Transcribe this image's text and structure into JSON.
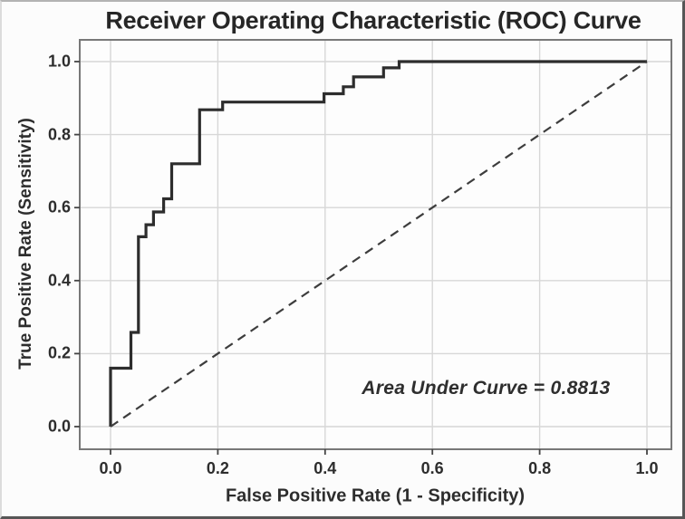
{
  "figure": {
    "kind": "statistical-plot-screenshot",
    "background": "#fcfcfc"
  },
  "chart_data": {
    "type": "line",
    "subtype": "roc-step-curve",
    "title": "Receiver Operating Characteristic (ROC) Curve",
    "xlabel": "False Positive Rate (1 - Specificity)",
    "ylabel": "True Positive Rate (Sensitivity)",
    "xlim": [
      0.0,
      1.0
    ],
    "ylim": [
      0.0,
      1.0
    ],
    "grid": true,
    "legend_position": "none",
    "x_ticks": [
      0.0,
      0.2,
      0.4,
      0.6,
      0.8,
      1.0
    ],
    "y_ticks": [
      0.0,
      0.2,
      0.4,
      0.6,
      0.8,
      1.0
    ],
    "x_tick_labels": [
      "0.0",
      "0.2",
      "0.4",
      "0.6",
      "0.8",
      "1.0"
    ],
    "y_tick_labels": [
      "0.0",
      "0.2",
      "0.4",
      "0.6",
      "0.8",
      "1.0"
    ],
    "auc": 0.8813,
    "annotation": {
      "text": "Area Under Curve = 0.8813",
      "x": 0.7,
      "y": 0.105
    },
    "series": [
      {
        "name": "ROC curve",
        "style": "solid",
        "color": "#2d2d2d",
        "width": 3.2,
        "points": [
          [
            0.0,
            0.0
          ],
          [
            0.0,
            0.16
          ],
          [
            0.038,
            0.16
          ],
          [
            0.038,
            0.258
          ],
          [
            0.052,
            0.258
          ],
          [
            0.052,
            0.52
          ],
          [
            0.066,
            0.52
          ],
          [
            0.066,
            0.553
          ],
          [
            0.08,
            0.553
          ],
          [
            0.08,
            0.588
          ],
          [
            0.099,
            0.588
          ],
          [
            0.099,
            0.624
          ],
          [
            0.114,
            0.624
          ],
          [
            0.114,
            0.72
          ],
          [
            0.166,
            0.72
          ],
          [
            0.166,
            0.868
          ],
          [
            0.209,
            0.868
          ],
          [
            0.209,
            0.889
          ],
          [
            0.398,
            0.889
          ],
          [
            0.398,
            0.912
          ],
          [
            0.434,
            0.912
          ],
          [
            0.434,
            0.931
          ],
          [
            0.453,
            0.931
          ],
          [
            0.453,
            0.958
          ],
          [
            0.509,
            0.958
          ],
          [
            0.509,
            0.983
          ],
          [
            0.538,
            0.983
          ],
          [
            0.538,
            1.0
          ],
          [
            1.0,
            1.0
          ]
        ]
      },
      {
        "name": "Chance diagonal",
        "style": "dashed",
        "color": "#3d3d3d",
        "width": 2.2,
        "dash": "10 7",
        "points": [
          [
            0.0,
            0.0
          ],
          [
            1.0,
            1.0
          ]
        ]
      }
    ],
    "colors": {
      "grid": "#d7d7d7",
      "plot_border": "#787878",
      "tick": "#444444",
      "text": "#2d2d2d",
      "plot_background": "#fdfdfd"
    }
  }
}
